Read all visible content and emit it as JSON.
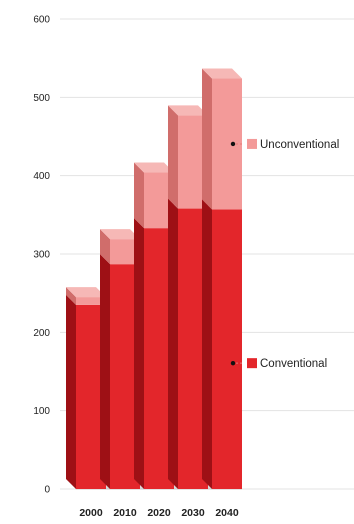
{
  "chart_data": {
    "type": "bar",
    "stacked": true,
    "three_d": true,
    "categories": [
      "2000",
      "2010",
      "2020",
      "2030",
      "2040"
    ],
    "series": [
      {
        "name": "Conventional",
        "values": [
          235,
          287,
          333,
          358,
          357
        ]
      },
      {
        "name": "Unconventional",
        "values": [
          10,
          32,
          71,
          119,
          167
        ]
      }
    ],
    "ylim": [
      0,
      600
    ],
    "yticks": [
      "0",
      "100",
      "200",
      "300",
      "400",
      "500",
      "600"
    ],
    "grid": true,
    "legend": "right, labels pointing at the 2040 bar"
  },
  "colors": {
    "conventional_front": "#e3262b",
    "conventional_side": "#9e1015",
    "conventional_top": "#ef6a6a",
    "unconventional_front": "#f39a99",
    "unconventional_side": "#d06d6b",
    "unconventional_top": "#f6b8b6",
    "grid": "#e3e3e3",
    "connector": "#e87878"
  }
}
